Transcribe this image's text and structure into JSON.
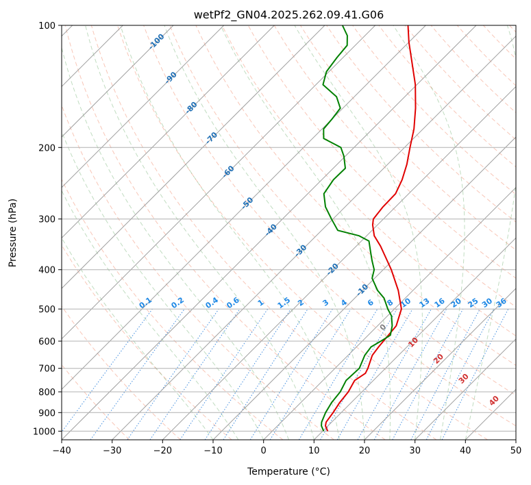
{
  "chart_data": {
    "type": "line",
    "title": "wetPf2_GN04.2025.262.09.41.G06",
    "xlabel": "Temperature (°C)",
    "ylabel": "Pressure (hPa)",
    "xlim": [
      -40,
      50
    ],
    "ylim": [
      1050,
      100
    ],
    "y_scale": "log",
    "x_ticks": [
      -40,
      -30,
      -20,
      -10,
      0,
      10,
      20,
      30,
      40,
      50
    ],
    "x_tick_labels": [
      "−40",
      "−30",
      "−20",
      "−10",
      "0",
      "10",
      "20",
      "30",
      "40",
      "50"
    ],
    "y_ticks": [
      1000,
      900,
      800,
      700,
      600,
      500,
      400,
      300,
      200,
      100
    ],
    "y_tick_labels": [
      "1000",
      "900",
      "800",
      "700",
      "600",
      "500",
      "400",
      "300",
      "200",
      "100"
    ],
    "grid": true,
    "skew": 45,
    "series": [
      {
        "color": "#e00000",
        "points": [
          [
            1000,
            11.0
          ],
          [
            970,
            9.5
          ],
          [
            950,
            8.9
          ],
          [
            900,
            8.4
          ],
          [
            850,
            7.7
          ],
          [
            800,
            7.3
          ],
          [
            750,
            6.3
          ],
          [
            720,
            7.0
          ],
          [
            700,
            6.5
          ],
          [
            650,
            4.8
          ],
          [
            620,
            4.4
          ],
          [
            600,
            4.2
          ],
          [
            550,
            3.7
          ],
          [
            500,
            1.4
          ],
          [
            450,
            -2.9
          ],
          [
            400,
            -8.4
          ],
          [
            380,
            -11.0
          ],
          [
            350,
            -15.2
          ],
          [
            330,
            -18.5
          ],
          [
            310,
            -21.0
          ],
          [
            300,
            -22.0
          ],
          [
            280,
            -22.5
          ],
          [
            260,
            -22.6
          ],
          [
            240,
            -24.1
          ],
          [
            220,
            -26.2
          ],
          [
            200,
            -28.9
          ],
          [
            180,
            -31.8
          ],
          [
            160,
            -35.6
          ],
          [
            140,
            -40.3
          ],
          [
            120,
            -46.5
          ],
          [
            110,
            -50.0
          ],
          [
            100,
            -53.5
          ]
        ]
      },
      {
        "color": "#008000",
        "points": [
          [
            1000,
            10.2
          ],
          [
            970,
            8.7
          ],
          [
            950,
            8.0
          ],
          [
            900,
            6.9
          ],
          [
            850,
            6.1
          ],
          [
            800,
            5.7
          ],
          [
            750,
            4.6
          ],
          [
            700,
            4.8
          ],
          [
            650,
            3.3
          ],
          [
            620,
            2.9
          ],
          [
            600,
            3.7
          ],
          [
            580,
            4.4
          ],
          [
            550,
            2.9
          ],
          [
            520,
            0.8
          ],
          [
            500,
            -1.3
          ],
          [
            470,
            -4.2
          ],
          [
            450,
            -7.0
          ],
          [
            420,
            -10.5
          ],
          [
            400,
            -11.8
          ],
          [
            380,
            -14.0
          ],
          [
            360,
            -16.2
          ],
          [
            340,
            -18.5
          ],
          [
            330,
            -21.5
          ],
          [
            320,
            -26.8
          ],
          [
            300,
            -30.3
          ],
          [
            280,
            -33.9
          ],
          [
            260,
            -36.8
          ],
          [
            240,
            -37.7
          ],
          [
            225,
            -37.6
          ],
          [
            210,
            -40.3
          ],
          [
            200,
            -42.6
          ],
          [
            190,
            -47.8
          ],
          [
            180,
            -49.7
          ],
          [
            170,
            -50.0
          ],
          [
            160,
            -50.5
          ],
          [
            150,
            -53.5
          ],
          [
            140,
            -58.6
          ],
          [
            130,
            -60.5
          ],
          [
            120,
            -61.2
          ],
          [
            112,
            -61.6
          ],
          [
            106,
            -63.5
          ],
          [
            100,
            -66.5
          ]
        ]
      }
    ],
    "isotherm_labels": [
      "-100",
      "-90",
      "-80",
      "-70",
      "-60",
      "-50",
      "-40",
      "-30",
      "-20",
      "-10"
    ],
    "mixing_ratio_labels": [
      "0.1",
      "0.2",
      "0.4",
      "0.6",
      "1",
      "1.5",
      "2",
      "3",
      "4",
      "6",
      "8",
      "10",
      "13",
      "16",
      "20",
      "25",
      "30",
      "36"
    ],
    "wetbulb_labels": [
      "0",
      "10",
      "20",
      "30",
      "40"
    ]
  }
}
